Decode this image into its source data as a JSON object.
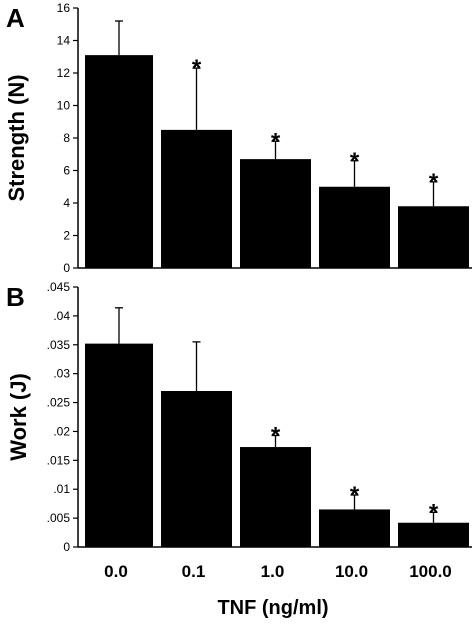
{
  "chart_data": [
    {
      "type": "bar",
      "panel_label": "A",
      "ylabel": "Strength (N)",
      "categories": [
        "0.0",
        "0.1",
        "1.0",
        "10.0",
        "100.0"
      ],
      "values": [
        13.1,
        8.5,
        6.7,
        5.0,
        3.8
      ],
      "errors": [
        2.1,
        3.8,
        1.1,
        1.6,
        1.5
      ],
      "significant": [
        false,
        true,
        true,
        true,
        true
      ],
      "significance_marker": "*",
      "ylim": [
        0,
        16
      ],
      "yticks": [
        0,
        2,
        4,
        6,
        8,
        10,
        12,
        14,
        16
      ],
      "ytick_labels": [
        "0",
        "2",
        "4",
        "6",
        "8",
        "10",
        "12",
        "14",
        "16"
      ],
      "color": "#000000"
    },
    {
      "type": "bar",
      "panel_label": "B",
      "ylabel": "Work (J)",
      "categories": [
        "0.0",
        "0.1",
        "1.0",
        "10.0",
        "100.0"
      ],
      "values": [
        0.0352,
        0.027,
        0.0173,
        0.0065,
        0.0042
      ],
      "errors": [
        0.0062,
        0.0085,
        0.002,
        0.0025,
        0.0018
      ],
      "significant": [
        false,
        false,
        true,
        true,
        true
      ],
      "significance_marker": "*",
      "ylim": [
        0,
        0.045
      ],
      "yticks": [
        0,
        0.005,
        0.01,
        0.015,
        0.02,
        0.025,
        0.03,
        0.035,
        0.04,
        0.045
      ],
      "ytick_labels": [
        "0",
        ".005",
        ".01",
        ".015",
        ".02",
        ".025",
        ".03",
        ".035",
        ".04",
        ".045"
      ],
      "color": "#000000"
    }
  ],
  "shared_xlabel": "TNF (ng/ml)"
}
